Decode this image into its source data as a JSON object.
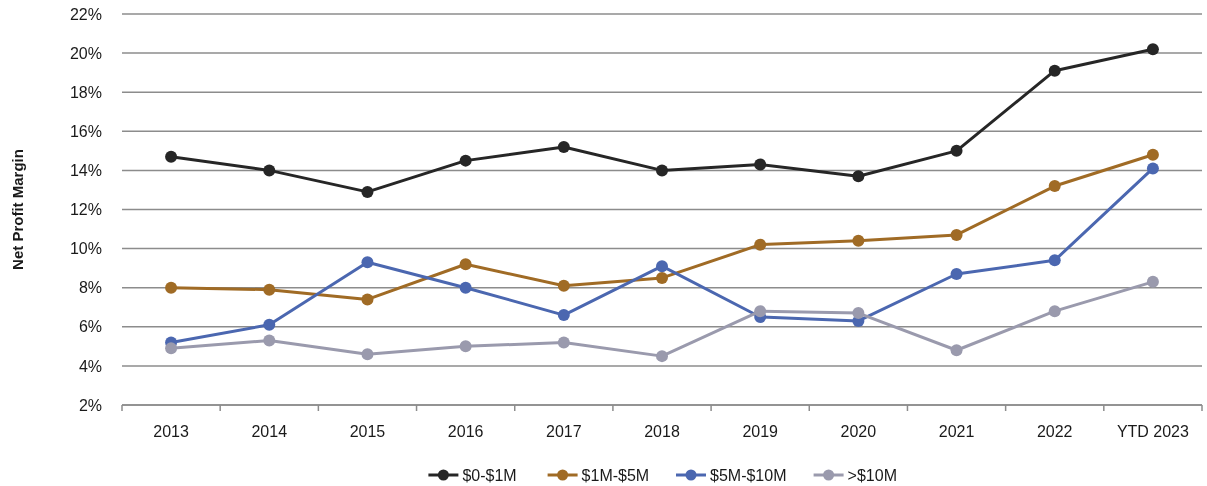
{
  "chart_data": {
    "type": "line",
    "ylabel": "Net Profit Margin",
    "categories": [
      "2013",
      "2014",
      "2015",
      "2016",
      "2017",
      "2018",
      "2019",
      "2020",
      "2021",
      "2022",
      "YTD 2023"
    ],
    "series": [
      {
        "name": "$0-$1M",
        "color": "#262626",
        "values": [
          14.7,
          14.0,
          12.9,
          14.5,
          15.2,
          14.0,
          14.3,
          13.7,
          15.0,
          19.1,
          20.2
        ]
      },
      {
        "name": "$1M-$5M",
        "color": "#a06b25",
        "values": [
          8.0,
          7.9,
          7.4,
          9.2,
          8.1,
          8.5,
          10.2,
          10.4,
          10.7,
          13.2,
          14.8
        ]
      },
      {
        "name": "$5M-$10M",
        "color": "#4b67b0",
        "values": [
          5.2,
          6.1,
          9.3,
          8.0,
          6.6,
          9.1,
          6.5,
          6.3,
          8.7,
          9.4,
          14.1
        ]
      },
      {
        "name": ">$10M",
        "color": "#9a9aad",
        "values": [
          4.9,
          5.3,
          4.6,
          5.0,
          5.2,
          4.5,
          6.8,
          6.7,
          4.8,
          6.8,
          8.3
        ]
      }
    ],
    "ylim": [
      2,
      22
    ],
    "yticks": [
      {
        "value": 2,
        "label": "2%"
      },
      {
        "value": 4,
        "label": "4%"
      },
      {
        "value": 6,
        "label": "6%"
      },
      {
        "value": 8,
        "label": "8%"
      },
      {
        "value": 10,
        "label": "10%"
      },
      {
        "value": 12,
        "label": "12%"
      },
      {
        "value": 14,
        "label": "14%"
      },
      {
        "value": 16,
        "label": "16%"
      },
      {
        "value": 18,
        "label": "18%"
      },
      {
        "value": 20,
        "label": "20%"
      },
      {
        "value": 22,
        "label": "22%"
      }
    ],
    "grid": "y",
    "legend": "bottom",
    "marker": "circle",
    "line_style": "solid"
  }
}
